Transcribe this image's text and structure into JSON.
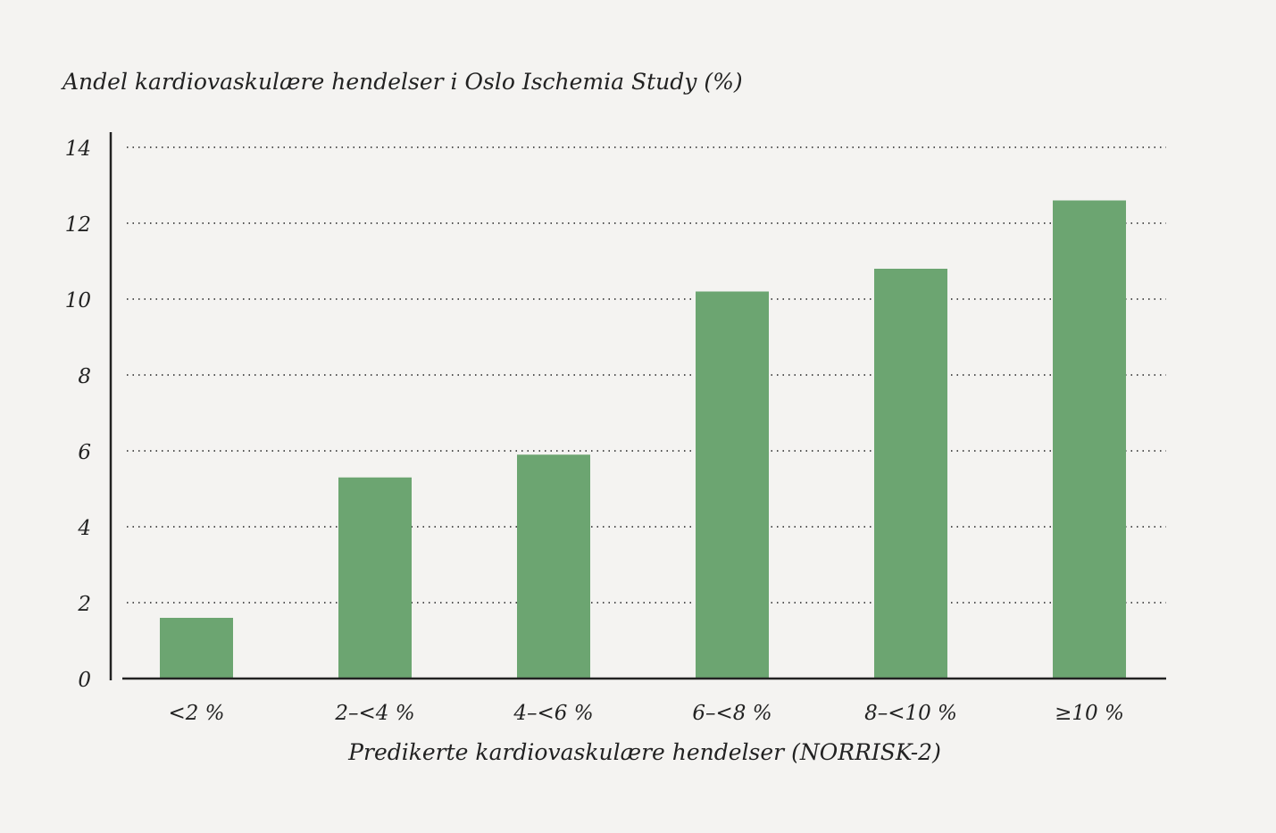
{
  "chart_data": {
    "type": "bar",
    "title": "Andel kardiovaskulære hendelser i Oslo Ischemia Study (%)",
    "xlabel": "Predikerte kardiovaskulære hendelser (NORRISK-2)",
    "ylabel": "",
    "categories": [
      "<2 %",
      "2–<4 %",
      "4–<6 %",
      "6–<8 %",
      "8–<10 %",
      "≥10 %"
    ],
    "values": [
      1.6,
      5.3,
      5.9,
      10.2,
      10.8,
      12.6
    ],
    "ylim": [
      0,
      14
    ],
    "yticks": [
      "0",
      "2",
      "4",
      "6",
      "8",
      "10",
      "12",
      "14"
    ],
    "grid": "horizontal dotted",
    "legend": "none",
    "colors": {
      "bar": "#6ca571",
      "axis": "#222222",
      "grid": "#555555",
      "background": "#f4f3f1"
    }
  }
}
